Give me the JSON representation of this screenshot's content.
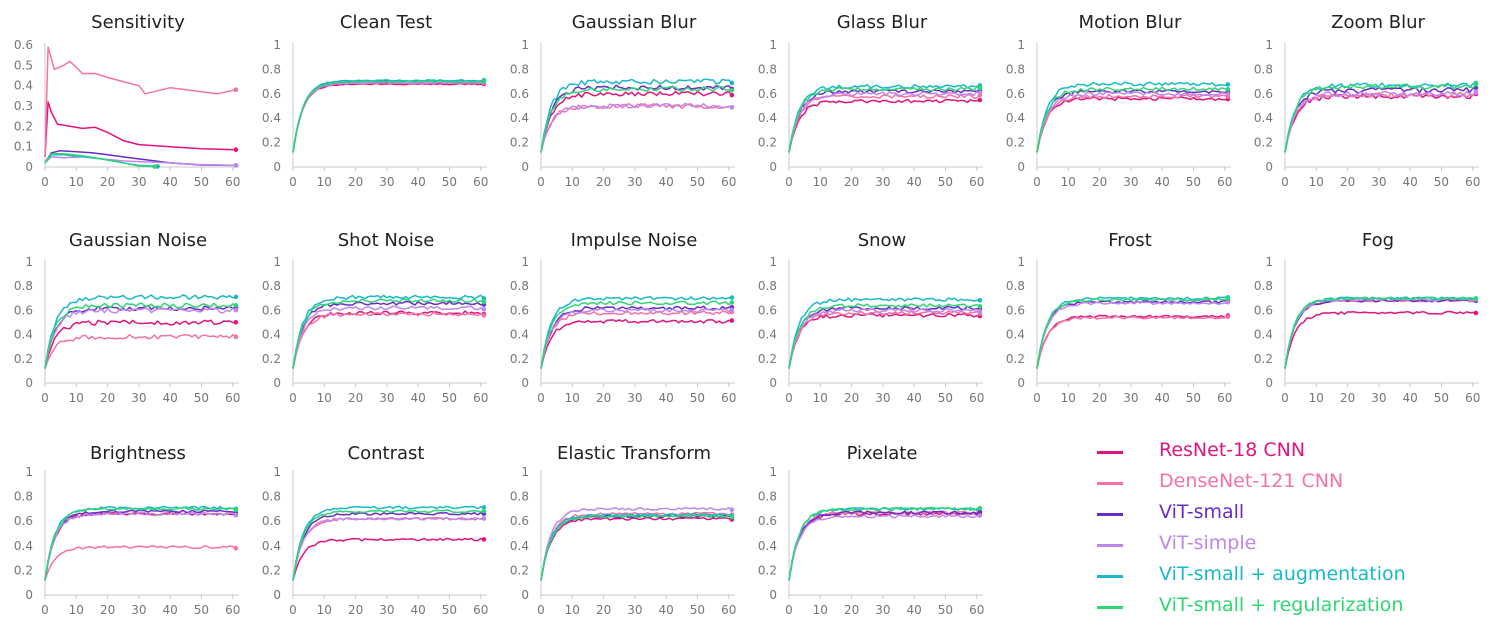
{
  "chart_data": {
    "type": "line",
    "x_axis": {
      "ticks": [
        0,
        10,
        20,
        30,
        40,
        50,
        60
      ],
      "range": [
        0,
        62
      ]
    },
    "series_order": [
      "resnet18",
      "densenet121",
      "vit_small",
      "vit_simple",
      "vit_small_aug",
      "vit_small_reg"
    ],
    "legend": [
      {
        "key": "resnet18",
        "label": "ResNet-18 CNN",
        "color": "#e0157f"
      },
      {
        "key": "densenet121",
        "label": "DenseNet-121 CNN",
        "color": "#f472a6"
      },
      {
        "key": "vit_small",
        "label": "ViT-small",
        "color": "#6a2cc6"
      },
      {
        "key": "vit_simple",
        "label": "ViT-simple",
        "color": "#bf86ee"
      },
      {
        "key": "vit_small_aug",
        "label": "ViT-small + augmentation",
        "color": "#19b9c9"
      },
      {
        "key": "vit_small_reg",
        "label": "ViT-small + regularization",
        "color": "#2fd674"
      }
    ],
    "panels": [
      {
        "title": "Sensitivity",
        "ylim": [
          0,
          0.6
        ],
        "yticks": [
          "0",
          "0.1",
          "0.2",
          "0.3",
          "0.4",
          "0.5",
          "0.6"
        ],
        "curves": {
          "resnet18": {
            "points": [
              [
                0,
                0.05
              ],
              [
                1,
                0.32
              ],
              [
                2,
                0.27
              ],
              [
                4,
                0.21
              ],
              [
                8,
                0.2
              ],
              [
                12,
                0.19
              ],
              [
                16,
                0.195
              ],
              [
                20,
                0.17
              ],
              [
                25,
                0.13
              ],
              [
                30,
                0.11
              ],
              [
                40,
                0.1
              ],
              [
                50,
                0.09
              ],
              [
                61,
                0.085
              ]
            ]
          },
          "densenet121": {
            "points": [
              [
                0,
                0.05
              ],
              [
                1,
                0.59
              ],
              [
                3,
                0.48
              ],
              [
                6,
                0.5
              ],
              [
                8,
                0.52
              ],
              [
                12,
                0.46
              ],
              [
                16,
                0.46
              ],
              [
                20,
                0.44
              ],
              [
                25,
                0.42
              ],
              [
                30,
                0.4
              ],
              [
                32,
                0.36
              ],
              [
                40,
                0.39
              ],
              [
                50,
                0.37
              ],
              [
                55,
                0.36
              ],
              [
                61,
                0.38
              ]
            ]
          },
          "vit_small": {
            "points": [
              [
                0,
                0.02
              ],
              [
                2,
                0.07
              ],
              [
                5,
                0.08
              ],
              [
                10,
                0.075
              ],
              [
                15,
                0.07
              ],
              [
                20,
                0.06
              ],
              [
                30,
                0.04
              ],
              [
                40,
                0.02
              ],
              [
                50,
                0.01
              ],
              [
                61,
                0.008
              ]
            ]
          },
          "vit_simple": {
            "points": [
              [
                0,
                0.02
              ],
              [
                2,
                0.05
              ],
              [
                6,
                0.045
              ],
              [
                12,
                0.05
              ],
              [
                18,
                0.04
              ],
              [
                25,
                0.03
              ],
              [
                32,
                0.025
              ],
              [
                40,
                0.02
              ],
              [
                50,
                0.012
              ],
              [
                61,
                0.008
              ]
            ]
          },
          "vit_small_aug": {
            "points": [
              [
                0,
                0.02
              ],
              [
                2,
                0.06
              ],
              [
                6,
                0.06
              ],
              [
                12,
                0.05
              ],
              [
                18,
                0.04
              ],
              [
                25,
                0.02
              ],
              [
                30,
                0.008
              ],
              [
                36,
                0.003
              ]
            ]
          },
          "vit_small_reg": {
            "points": [
              [
                0,
                0.02
              ],
              [
                2,
                0.065
              ],
              [
                6,
                0.065
              ],
              [
                12,
                0.055
              ],
              [
                18,
                0.04
              ],
              [
                25,
                0.02
              ],
              [
                30,
                0.005
              ],
              [
                35,
                0.002
              ]
            ]
          }
        }
      },
      {
        "title": "Clean Test",
        "ylim": [
          0,
          1
        ],
        "yticks": [
          "0",
          "0.2",
          "0.4",
          "0.6",
          "0.8",
          "1"
        ],
        "plateau": {
          "resnet18": 0.68,
          "densenet121": 0.69,
          "vit_small": 0.7,
          "vit_simple": 0.69,
          "vit_small_aug": 0.71,
          "vit_small_reg": 0.7
        },
        "noise": 0.005
      },
      {
        "title": "Gaussian Blur",
        "ylim": [
          0,
          1
        ],
        "yticks": [
          "0",
          "0.2",
          "0.4",
          "0.6",
          "0.8",
          "1"
        ],
        "plateau": {
          "resnet18": 0.6,
          "densenet121": 0.5,
          "vit_small": 0.65,
          "vit_simple": 0.5,
          "vit_small_aug": 0.7,
          "vit_small_reg": 0.64
        },
        "noise": 0.02
      },
      {
        "title": "Glass Blur",
        "ylim": [
          0,
          1
        ],
        "yticks": [
          "0",
          "0.2",
          "0.4",
          "0.6",
          "0.8",
          "1"
        ],
        "plateau": {
          "resnet18": 0.54,
          "densenet121": 0.58,
          "vit_small": 0.62,
          "vit_simple": 0.6,
          "vit_small_aug": 0.66,
          "vit_small_reg": 0.64
        },
        "noise": 0.015
      },
      {
        "title": "Motion Blur",
        "ylim": [
          0,
          1
        ],
        "yticks": [
          "0",
          "0.2",
          "0.4",
          "0.6",
          "0.8",
          "1"
        ],
        "plateau": {
          "resnet18": 0.56,
          "densenet121": 0.58,
          "vit_small": 0.62,
          "vit_simple": 0.6,
          "vit_small_aug": 0.68,
          "vit_small_reg": 0.64
        },
        "noise": 0.015
      },
      {
        "title": "Zoom Blur",
        "ylim": [
          0,
          1
        ],
        "yticks": [
          "0",
          "0.2",
          "0.4",
          "0.6",
          "0.8",
          "1"
        ],
        "plateau": {
          "resnet18": 0.58,
          "densenet121": 0.59,
          "vit_small": 0.63,
          "vit_simple": 0.6,
          "vit_small_aug": 0.67,
          "vit_small_reg": 0.66
        },
        "noise": 0.02
      },
      {
        "title": "Gaussian Noise",
        "ylim": [
          0,
          1
        ],
        "yticks": [
          "0",
          "0.2",
          "0.4",
          "0.6",
          "0.8",
          "1"
        ],
        "plateau": {
          "resnet18": 0.5,
          "densenet121": 0.38,
          "vit_small": 0.62,
          "vit_simple": 0.6,
          "vit_small_aug": 0.71,
          "vit_small_reg": 0.64
        },
        "noise": 0.02
      },
      {
        "title": "Shot Noise",
        "ylim": [
          0,
          1
        ],
        "yticks": [
          "0",
          "0.2",
          "0.4",
          "0.6",
          "0.8",
          "1"
        ],
        "plateau": {
          "resnet18": 0.58,
          "densenet121": 0.57,
          "vit_small": 0.66,
          "vit_simple": 0.62,
          "vit_small_aug": 0.71,
          "vit_small_reg": 0.68
        },
        "noise": 0.015
      },
      {
        "title": "Impulse Noise",
        "ylim": [
          0,
          1
        ],
        "yticks": [
          "0",
          "0.2",
          "0.4",
          "0.6",
          "0.8",
          "1"
        ],
        "plateau": {
          "resnet18": 0.51,
          "densenet121": 0.58,
          "vit_small": 0.62,
          "vit_simple": 0.6,
          "vit_small_aug": 0.7,
          "vit_small_reg": 0.66
        },
        "noise": 0.015
      },
      {
        "title": "Snow",
        "ylim": [
          0,
          1
        ],
        "yticks": [
          "0",
          "0.2",
          "0.4",
          "0.6",
          "0.8",
          "1"
        ],
        "plateau": {
          "resnet18": 0.56,
          "densenet121": 0.58,
          "vit_small": 0.62,
          "vit_simple": 0.6,
          "vit_small_aug": 0.69,
          "vit_small_reg": 0.64
        },
        "noise": 0.015
      },
      {
        "title": "Frost",
        "ylim": [
          0,
          1
        ],
        "yticks": [
          "0",
          "0.2",
          "0.4",
          "0.6",
          "0.8",
          "1"
        ],
        "plateau": {
          "resnet18": 0.55,
          "densenet121": 0.54,
          "vit_small": 0.67,
          "vit_simple": 0.66,
          "vit_small_aug": 0.7,
          "vit_small_reg": 0.69
        },
        "noise": 0.01
      },
      {
        "title": "Fog",
        "ylim": [
          0,
          1
        ],
        "yticks": [
          "0",
          "0.2",
          "0.4",
          "0.6",
          "0.8",
          "1"
        ],
        "plateau": {
          "resnet18": 0.58,
          "densenet121": 0.68,
          "vit_small": 0.68,
          "vit_simple": 0.69,
          "vit_small_aug": 0.7,
          "vit_small_reg": 0.7
        },
        "noise": 0.01
      },
      {
        "title": "Brightness",
        "ylim": [
          0,
          1
        ],
        "yticks": [
          "0",
          "0.2",
          "0.4",
          "0.6",
          "0.8",
          "1"
        ],
        "plateau": {
          "resnet18": 0.66,
          "densenet121": 0.39,
          "vit_small": 0.68,
          "vit_simple": 0.66,
          "vit_small_aug": 0.71,
          "vit_small_reg": 0.7
        },
        "noise": 0.01
      },
      {
        "title": "Contrast",
        "ylim": [
          0,
          1
        ],
        "yticks": [
          "0",
          "0.2",
          "0.4",
          "0.6",
          "0.8",
          "1"
        ],
        "plateau": {
          "resnet18": 0.45,
          "densenet121": 0.62,
          "vit_small": 0.66,
          "vit_simple": 0.62,
          "vit_small_aug": 0.71,
          "vit_small_reg": 0.68
        },
        "noise": 0.01
      },
      {
        "title": "Elastic Transform",
        "ylim": [
          0,
          1
        ],
        "yticks": [
          "0",
          "0.2",
          "0.4",
          "0.6",
          "0.8",
          "1"
        ],
        "plateau": {
          "resnet18": 0.62,
          "densenet121": 0.66,
          "vit_small": 0.64,
          "vit_simple": 0.7,
          "vit_small_aug": 0.65,
          "vit_small_reg": 0.64
        },
        "noise": 0.01
      },
      {
        "title": "Pixelate",
        "ylim": [
          0,
          1
        ],
        "yticks": [
          "0",
          "0.2",
          "0.4",
          "0.6",
          "0.8",
          "1"
        ],
        "plateau": {
          "resnet18": 0.66,
          "densenet121": 0.67,
          "vit_small": 0.67,
          "vit_simple": 0.64,
          "vit_small_aug": 0.7,
          "vit_small_reg": 0.7
        },
        "noise": 0.012
      }
    ]
  }
}
